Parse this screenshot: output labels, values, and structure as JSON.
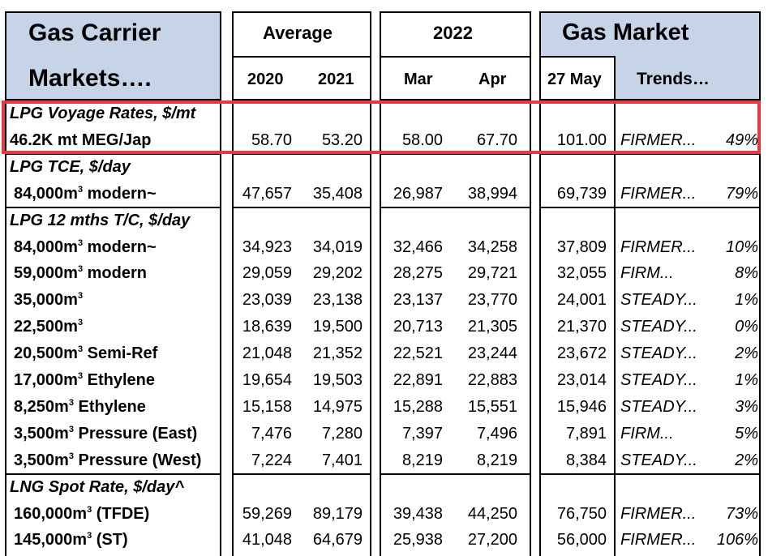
{
  "header": {
    "title_line1": "Gas Carrier",
    "title_line2": "Markets….",
    "average_label": "Average",
    "year_2022_label": "2022",
    "gas_market_label": "Gas Market",
    "col_2020": "2020",
    "col_2021": "2021",
    "col_mar": "Mar",
    "col_apr": "Apr",
    "col_date": "27 May",
    "col_trends": "Trends…"
  },
  "colors": {
    "header_blue": "#c7d3e6",
    "highlight_red": "#e53a41"
  },
  "sections": [
    {
      "title": "LPG Voyage Rates, $/mt",
      "rows": [
        {
          "label": "46.2K mt MEG/Jap",
          "sup": "",
          "suffix": "",
          "v2020": "58.70",
          "v2021": "53.20",
          "mar": "58.00",
          "apr": "67.70",
          "may": "101.00",
          "trend": "FIRMER...",
          "pct": "49%"
        }
      ]
    },
    {
      "title": "LPG TCE, $/day",
      "rows": [
        {
          "label": "84,000m",
          "sup": "3",
          "suffix": " modern~",
          "v2020": "47,657",
          "v2021": "35,408",
          "mar": "26,987",
          "apr": "38,994",
          "may": "69,739",
          "trend": "FIRMER...",
          "pct": "79%"
        }
      ]
    },
    {
      "title": "LPG 12 mths T/C, $/day",
      "rows": [
        {
          "label": "84,000m",
          "sup": "3",
          "suffix": " modern~",
          "v2020": "34,923",
          "v2021": "34,019",
          "mar": "32,466",
          "apr": "34,258",
          "may": "37,809",
          "trend": "FIRMER...",
          "pct": "10%"
        },
        {
          "label": "59,000m",
          "sup": "3",
          "suffix": " modern",
          "v2020": "29,059",
          "v2021": "29,202",
          "mar": "28,275",
          "apr": "29,721",
          "may": "32,055",
          "trend": "FIRM...",
          "pct": "8%"
        },
        {
          "label": "35,000m",
          "sup": "3",
          "suffix": "",
          "v2020": "23,039",
          "v2021": "23,138",
          "mar": "23,137",
          "apr": "23,770",
          "may": "24,001",
          "trend": "STEADY...",
          "pct": "1%"
        },
        {
          "label": "22,500m",
          "sup": "3",
          "suffix": "",
          "v2020": "18,639",
          "v2021": "19,500",
          "mar": "20,713",
          "apr": "21,305",
          "may": "21,370",
          "trend": "STEADY...",
          "pct": "0%"
        },
        {
          "label": "20,500m",
          "sup": "3",
          "suffix": " Semi-Ref",
          "v2020": "21,048",
          "v2021": "21,352",
          "mar": "22,521",
          "apr": "23,244",
          "may": "23,672",
          "trend": "STEADY...",
          "pct": "2%"
        },
        {
          "label": "17,000m",
          "sup": "3",
          "suffix": " Ethylene",
          "v2020": "19,654",
          "v2021": "19,503",
          "mar": "22,891",
          "apr": "22,883",
          "may": "23,014",
          "trend": "STEADY...",
          "pct": "1%"
        },
        {
          "label": "8,250m",
          "sup": "3",
          "suffix": " Ethylene",
          "v2020": "15,158",
          "v2021": "14,975",
          "mar": "15,288",
          "apr": "15,551",
          "may": "15,946",
          "trend": "STEADY...",
          "pct": "3%"
        },
        {
          "label": "3,500m",
          "sup": "3",
          "suffix": " Pressure (East)",
          "v2020": "7,476",
          "v2021": "7,280",
          "mar": "7,397",
          "apr": "7,496",
          "may": "7,891",
          "trend": "FIRM...",
          "pct": "5%"
        },
        {
          "label": "3,500m",
          "sup": "3",
          "suffix": " Pressure (West)",
          "v2020": "7,224",
          "v2021": "7,401",
          "mar": "8,219",
          "apr": "8,219",
          "may": "8,384",
          "trend": "STEADY...",
          "pct": "2%"
        }
      ]
    },
    {
      "title": "LNG Spot Rate, $/day^",
      "rows": [
        {
          "label": "160,000m",
          "sup": "3",
          "suffix": " (TFDE)",
          "v2020": "59,269",
          "v2021": "89,179",
          "mar": "39,438",
          "apr": "44,250",
          "may": "76,750",
          "trend": "FIRMER...",
          "pct": "73%"
        },
        {
          "label": "145,000m",
          "sup": "3",
          "suffix": " (ST)",
          "v2020": "41,048",
          "v2021": "64,679",
          "mar": "25,938",
          "apr": "27,200",
          "may": "56,000",
          "trend": "FIRMER...",
          "pct": "106%"
        }
      ]
    }
  ]
}
